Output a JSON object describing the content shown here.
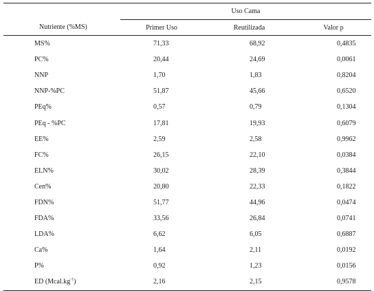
{
  "table": {
    "group_header": "Uso Cama",
    "columns": [
      "Nutriente (%MS)",
      "Primer Uso",
      "Reutilizada",
      "Valor p"
    ],
    "rows": [
      {
        "name": "MS%",
        "primer": "71,33",
        "reutil": "68,92",
        "p": "0,4835"
      },
      {
        "name": "PC%",
        "primer": "20,44",
        "reutil": "24,69",
        "p": "0,0061"
      },
      {
        "name": "NNP",
        "primer": "1,70",
        "reutil": "1,83",
        "p": "0,8204"
      },
      {
        "name": "NNP-%PC",
        "primer": "51,87",
        "reutil": "45,66",
        "p": "0,6520"
      },
      {
        "name": "PEq%",
        "primer": "0,57",
        "reutil": "0,79",
        "p": "0,1304"
      },
      {
        "name": "PEq - %PC",
        "primer": "17,81",
        "reutil": "19,93",
        "p": "0,6079"
      },
      {
        "name": "EE%",
        "primer": "2,59",
        "reutil": "2,58",
        "p": "0,9962"
      },
      {
        "name": "FC%",
        "primer": "26,15",
        "reutil": "22,10",
        "p": "0,0384"
      },
      {
        "name": "ELN%",
        "primer": "30,02",
        "reutil": "28,39",
        "p": "0,3844"
      },
      {
        "name": "Cen%",
        "primer": "20,80",
        "reutil": "22,33",
        "p": "0,1822"
      },
      {
        "name": "FDN%",
        "primer": "51,77",
        "reutil": "44,96",
        "p": "0,0474"
      },
      {
        "name": "FDA%",
        "primer": "33,56",
        "reutil": "26,84",
        "p": "0,0741"
      },
      {
        "name": "LDA%",
        "primer": "6,62",
        "reutil": "6,05",
        "p": "0,6887"
      },
      {
        "name": "Ca%",
        "primer": "1,64",
        "reutil": "2,11",
        "p": "0,0192"
      },
      {
        "name": "P%",
        "primer": "0,92",
        "reutil": "1,23",
        "p": "0,0156"
      }
    ],
    "last_row": {
      "name_prefix": "ED (Mcal.kg",
      "name_sup": "-1",
      "name_suffix": ")",
      "primer": "2,16",
      "reutil": "2,15",
      "p": "0,9578"
    }
  }
}
